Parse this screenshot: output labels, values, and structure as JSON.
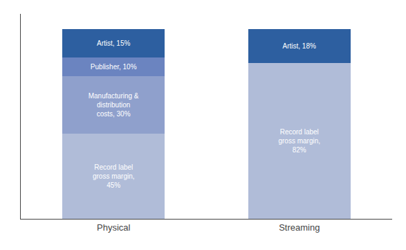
{
  "chart_data": {
    "type": "bar",
    "stacked": true,
    "categories": [
      "Physical",
      "Streaming"
    ],
    "series": [
      {
        "color": "#b0bcd8",
        "values": [
          45,
          null
        ],
        "value_labels": [
          "Record label\ngross margin,\n45%",
          null
        ]
      },
      {
        "color": "#8fa0cc",
        "values": [
          30,
          null
        ],
        "value_labels": [
          "Manufacturing &\ndistribution\ncosts, 30%",
          null
        ]
      },
      {
        "color": "#6b84c0",
        "values": [
          10,
          null
        ],
        "value_labels": [
          "Publisher, 10%",
          null
        ]
      },
      {
        "color": "#2d5fa0",
        "values": [
          15,
          null
        ],
        "value_labels": [
          "Artist, 15%",
          null
        ]
      },
      {
        "color": "#b0bcd8",
        "values": [
          null,
          82
        ],
        "value_labels": [
          null,
          "Record label\ngross margin,\n82%"
        ]
      },
      {
        "color": "#2d5fa0",
        "values": [
          null,
          18
        ],
        "value_labels": [
          null,
          "Artist, 18%"
        ]
      }
    ],
    "ylim": [
      0,
      108
    ],
    "data_labels": true,
    "tick_labels": "x",
    "grid": false
  }
}
